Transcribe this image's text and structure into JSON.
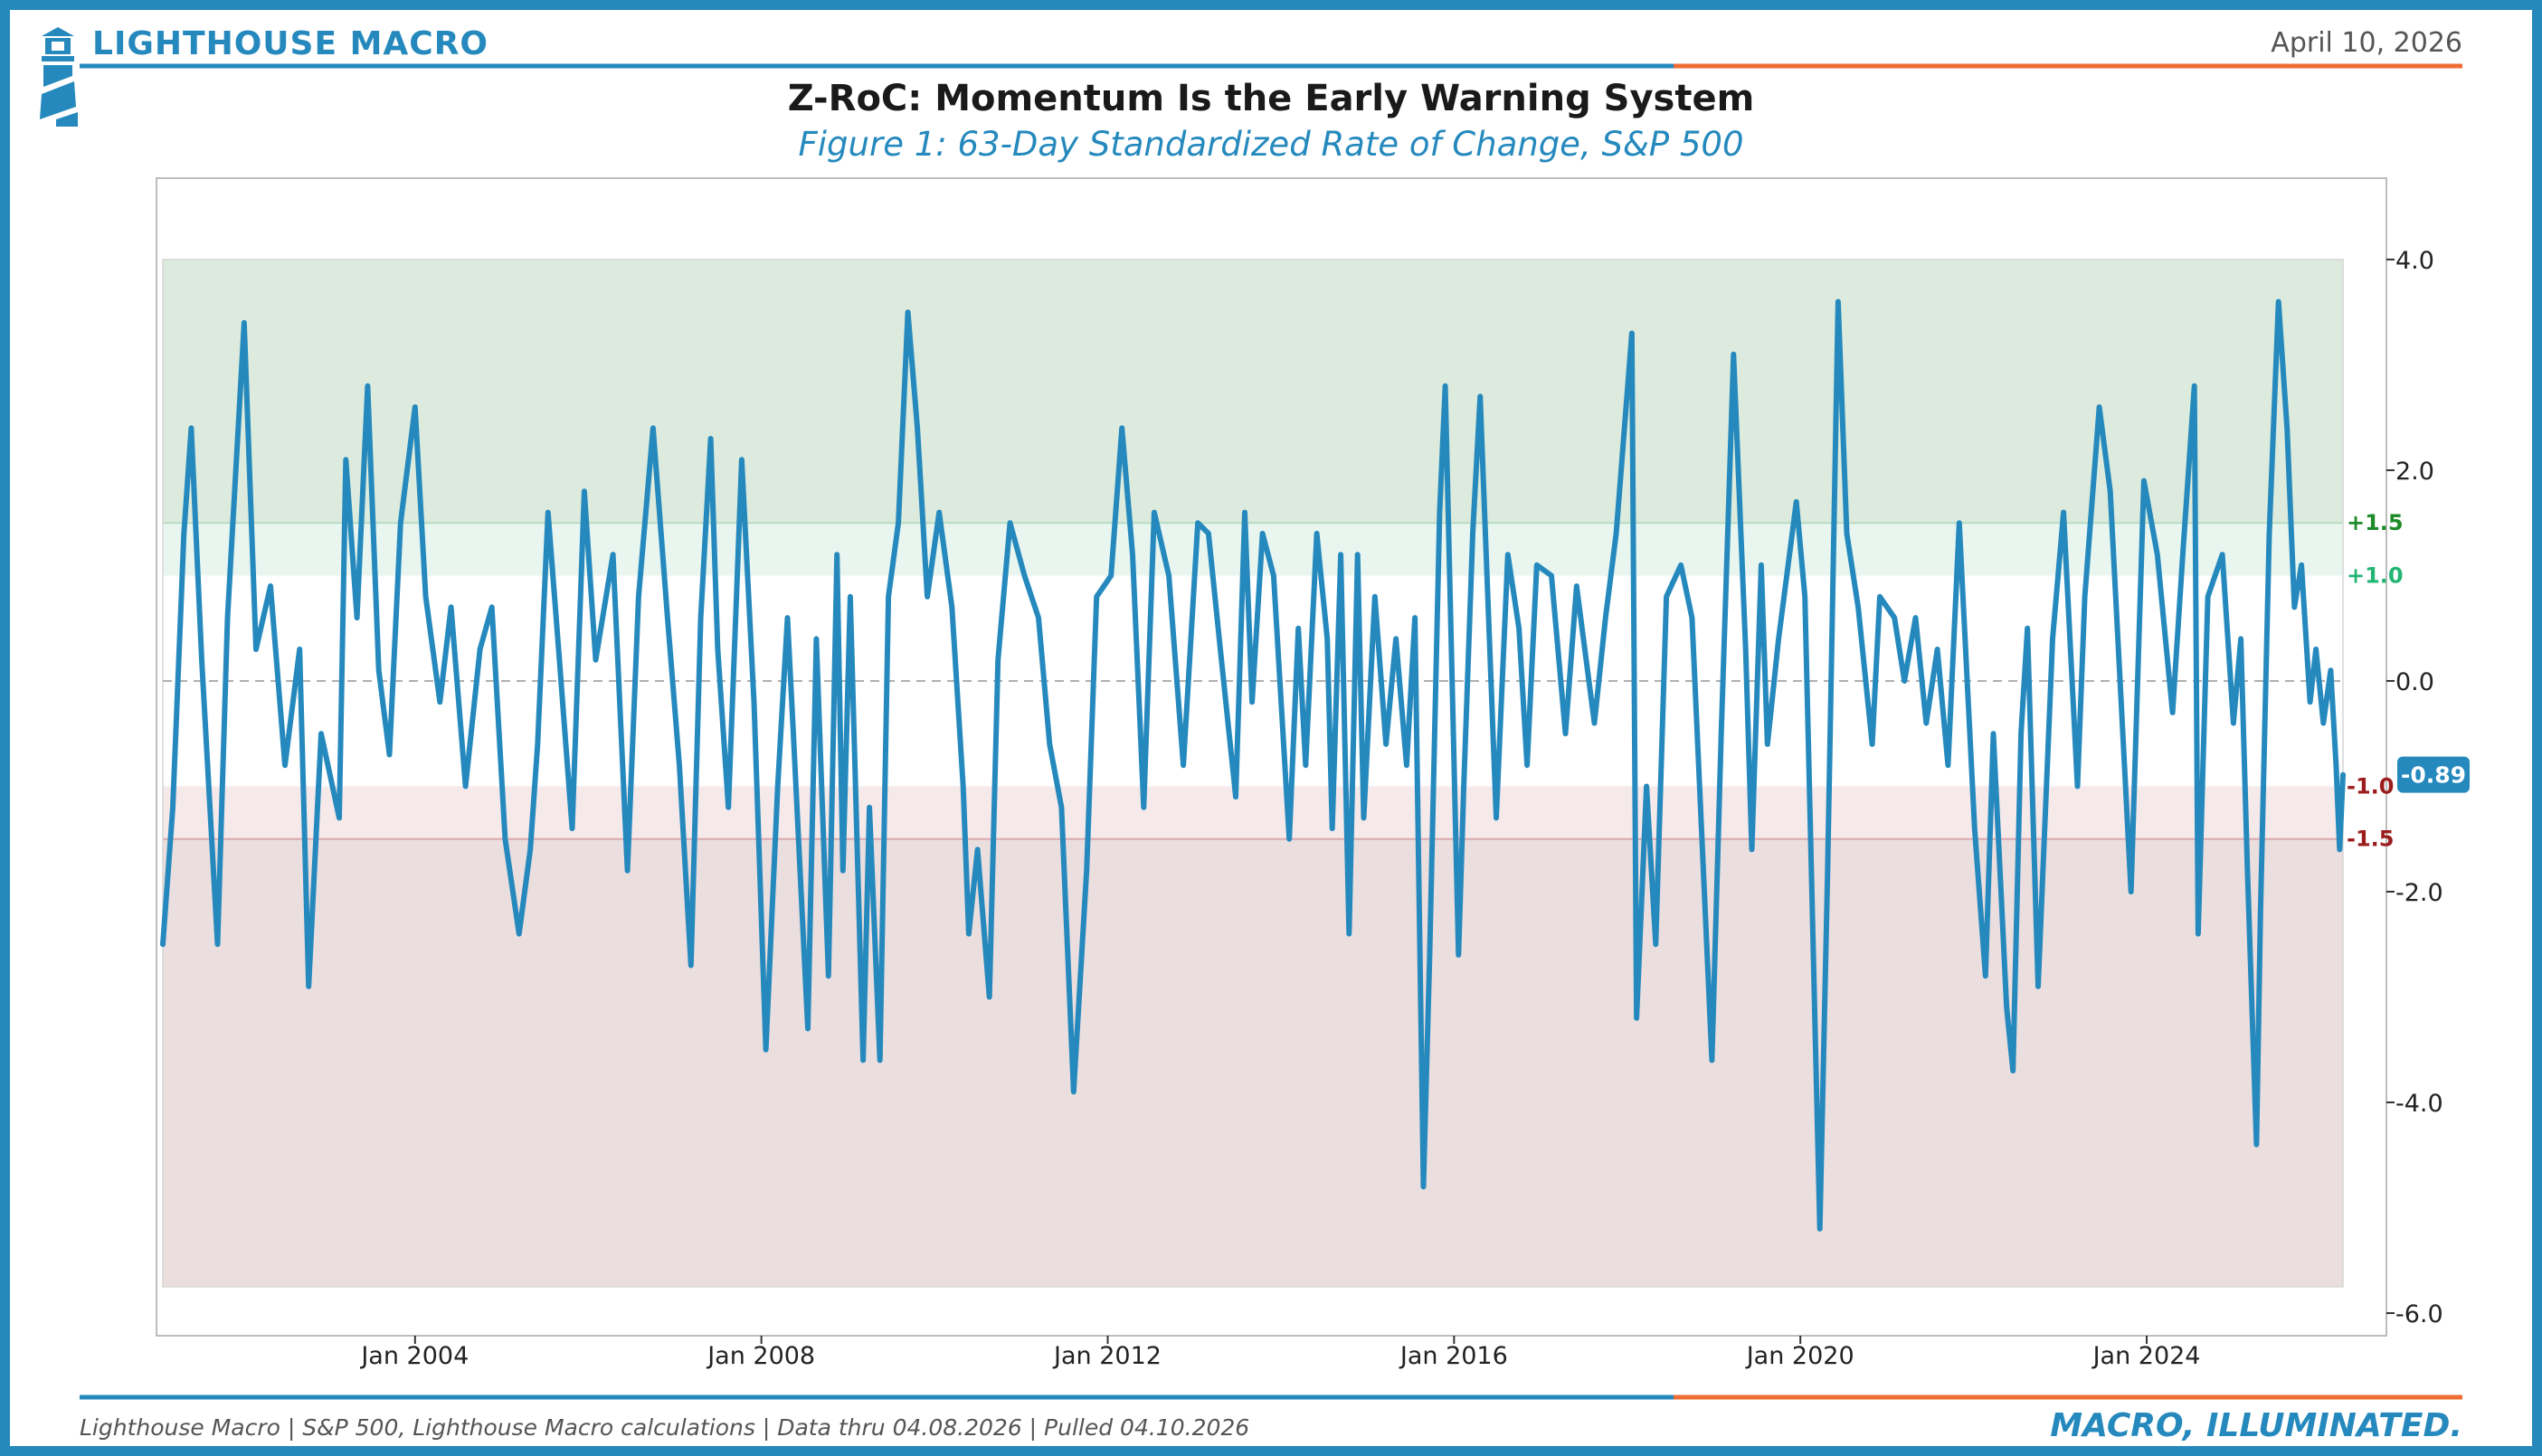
{
  "header": {
    "brand": "LIGHTHOUSE MACRO",
    "date": "April 10, 2026",
    "title": "Z-RoC: Momentum Is the Early Warning System",
    "subtitle": "Figure 1: 63-Day Standardized Rate of Change, S&P 500"
  },
  "footer": {
    "source": "Lighthouse Macro | S&P 500, Lighthouse Macro calculations | Data thru 04.08.2026 | Pulled 04.10.2026",
    "tagline": "MACRO, ILLUMINATED."
  },
  "colors": {
    "accent": "#2589bd",
    "accent_secondary": "#ef6c33",
    "series": "#2589bd",
    "upper_zone": "#dcebdd",
    "upper_band": "#e9f6f0",
    "lower_band": "#f5e9ea",
    "lower_zone": "#ebdede",
    "upper_label": "#1e8a2a",
    "upper_band_label": "#22b573",
    "lower_label": "#9b1c1c"
  },
  "chart_data": {
    "type": "line",
    "series": [
      {
        "values": [
          [
            "2001-02-01",
            -2.5
          ],
          [
            "2001-03-15",
            -1.2
          ],
          [
            "2001-05-01",
            1.4
          ],
          [
            "2001-06-01",
            2.4
          ],
          [
            "2001-07-15",
            0.2
          ],
          [
            "2001-09-20",
            -2.5
          ],
          [
            "2001-11-01",
            0.6
          ],
          [
            "2002-01-10",
            3.4
          ],
          [
            "2002-03-01",
            0.3
          ],
          [
            "2002-05-01",
            0.9
          ],
          [
            "2002-07-01",
            -0.8
          ],
          [
            "2002-09-01",
            0.3
          ],
          [
            "2002-10-09",
            -2.9
          ],
          [
            "2002-12-01",
            -0.5
          ],
          [
            "2003-02-15",
            -1.3
          ],
          [
            "2003-03-15",
            2.1
          ],
          [
            "2003-05-01",
            0.6
          ],
          [
            "2003-06-15",
            2.8
          ],
          [
            "2003-08-01",
            0.1
          ],
          [
            "2003-09-15",
            -0.7
          ],
          [
            "2003-11-01",
            1.5
          ],
          [
            "2004-01-01",
            2.6
          ],
          [
            "2004-02-15",
            0.8
          ],
          [
            "2004-04-15",
            -0.2
          ],
          [
            "2004-06-01",
            0.7
          ],
          [
            "2004-08-01",
            -1.0
          ],
          [
            "2004-10-01",
            0.3
          ],
          [
            "2004-11-20",
            0.7
          ],
          [
            "2005-01-15",
            -1.5
          ],
          [
            "2005-03-15",
            -2.4
          ],
          [
            "2005-05-01",
            -1.6
          ],
          [
            "2005-06-01",
            -0.6
          ],
          [
            "2005-07-15",
            1.6
          ],
          [
            "2005-09-01",
            0.2
          ],
          [
            "2005-10-25",
            -1.4
          ],
          [
            "2005-12-15",
            1.8
          ],
          [
            "2006-02-01",
            0.2
          ],
          [
            "2006-04-15",
            1.2
          ],
          [
            "2006-06-15",
            -1.8
          ],
          [
            "2006-08-01",
            0.8
          ],
          [
            "2006-10-01",
            2.4
          ],
          [
            "2006-12-01",
            0.6
          ],
          [
            "2007-01-20",
            -0.8
          ],
          [
            "2007-03-10",
            -2.7
          ],
          [
            "2007-04-20",
            0.6
          ],
          [
            "2007-06-01",
            2.3
          ],
          [
            "2007-07-01",
            0.3
          ],
          [
            "2007-08-15",
            -1.2
          ],
          [
            "2007-10-10",
            2.1
          ],
          [
            "2007-12-01",
            -0.2
          ],
          [
            "2008-01-20",
            -3.5
          ],
          [
            "2008-03-10",
            -1.0
          ],
          [
            "2008-04-20",
            0.6
          ],
          [
            "2008-05-15",
            -0.5
          ],
          [
            "2008-07-15",
            -3.3
          ],
          [
            "2008-08-20",
            0.4
          ],
          [
            "2008-10-10",
            -2.8
          ],
          [
            "2008-11-15",
            1.2
          ],
          [
            "2008-12-10",
            -1.8
          ],
          [
            "2009-01-10",
            0.8
          ],
          [
            "2009-03-05",
            -3.6
          ],
          [
            "2009-04-01",
            -1.2
          ],
          [
            "2009-05-15",
            -3.6
          ],
          [
            "2009-06-20",
            0.8
          ],
          [
            "2009-08-01",
            1.5
          ],
          [
            "2009-09-10",
            3.5
          ],
          [
            "2009-10-20",
            2.4
          ],
          [
            "2009-12-01",
            0.8
          ],
          [
            "2010-01-20",
            1.6
          ],
          [
            "2010-03-15",
            0.7
          ],
          [
            "2010-05-01",
            -1.0
          ],
          [
            "2010-05-25",
            -2.4
          ],
          [
            "2010-07-01",
            -1.6
          ],
          [
            "2010-08-20",
            -3.0
          ],
          [
            "2010-09-25",
            0.2
          ],
          [
            "2010-11-15",
            1.5
          ],
          [
            "2011-01-15",
            1.0
          ],
          [
            "2011-03-15",
            0.6
          ],
          [
            "2011-05-01",
            -0.6
          ],
          [
            "2011-06-20",
            -1.2
          ],
          [
            "2011-08-10",
            -3.9
          ],
          [
            "2011-10-04",
            -1.8
          ],
          [
            "2011-11-15",
            0.8
          ],
          [
            "2012-01-15",
            1.0
          ],
          [
            "2012-03-01",
            2.4
          ],
          [
            "2012-04-15",
            1.2
          ],
          [
            "2012-06-01",
            -1.2
          ],
          [
            "2012-07-15",
            1.6
          ],
          [
            "2012-09-15",
            1.0
          ],
          [
            "2012-11-15",
            -0.8
          ],
          [
            "2013-01-15",
            1.5
          ],
          [
            "2013-03-01",
            1.4
          ],
          [
            "2013-04-20",
            0.3
          ],
          [
            "2013-06-24",
            -1.1
          ],
          [
            "2013-08-01",
            1.6
          ],
          [
            "2013-09-01",
            -0.2
          ],
          [
            "2013-10-15",
            1.4
          ],
          [
            "2013-12-01",
            1.0
          ],
          [
            "2014-02-05",
            -1.5
          ],
          [
            "2014-03-15",
            0.5
          ],
          [
            "2014-04-15",
            -0.8
          ],
          [
            "2014-06-01",
            1.4
          ],
          [
            "2014-07-15",
            0.4
          ],
          [
            "2014-08-05",
            -1.4
          ],
          [
            "2014-09-10",
            1.2
          ],
          [
            "2014-10-15",
            -2.4
          ],
          [
            "2014-11-20",
            1.2
          ],
          [
            "2014-12-16",
            -1.3
          ],
          [
            "2015-02-01",
            0.8
          ],
          [
            "2015-03-20",
            -0.6
          ],
          [
            "2015-05-01",
            0.4
          ],
          [
            "2015-06-15",
            -0.8
          ],
          [
            "2015-07-20",
            0.6
          ],
          [
            "2015-08-25",
            -4.8
          ],
          [
            "2015-09-20",
            -2.6
          ],
          [
            "2015-11-01",
            1.6
          ],
          [
            "2015-11-25",
            2.8
          ],
          [
            "2016-01-20",
            -2.6
          ],
          [
            "2016-02-11",
            -1.0
          ],
          [
            "2016-03-20",
            1.4
          ],
          [
            "2016-04-20",
            2.7
          ],
          [
            "2016-06-27",
            -1.3
          ],
          [
            "2016-08-15",
            1.2
          ],
          [
            "2016-10-01",
            0.5
          ],
          [
            "2016-11-04",
            -0.8
          ],
          [
            "2016-12-15",
            1.1
          ],
          [
            "2017-02-15",
            1.0
          ],
          [
            "2017-04-15",
            -0.5
          ],
          [
            "2017-06-01",
            0.9
          ],
          [
            "2017-08-15",
            -0.4
          ],
          [
            "2017-10-01",
            0.6
          ],
          [
            "2017-11-15",
            1.4
          ],
          [
            "2018-01-20",
            3.3
          ],
          [
            "2018-02-09",
            -3.2
          ],
          [
            "2018-03-23",
            -1.0
          ],
          [
            "2018-05-01",
            -2.5
          ],
          [
            "2018-06-15",
            0.8
          ],
          [
            "2018-08-15",
            1.1
          ],
          [
            "2018-10-01",
            0.6
          ],
          [
            "2018-12-24",
            -3.6
          ],
          [
            "2019-02-01",
            -0.5
          ],
          [
            "2019-03-25",
            3.1
          ],
          [
            "2019-05-15",
            0.3
          ],
          [
            "2019-06-10",
            -1.6
          ],
          [
            "2019-07-20",
            1.1
          ],
          [
            "2019-08-15",
            -0.6
          ],
          [
            "2019-10-01",
            0.4
          ],
          [
            "2019-12-15",
            1.7
          ],
          [
            "2020-01-20",
            0.8
          ],
          [
            "2020-03-23",
            -5.2
          ],
          [
            "2020-04-25",
            -1.8
          ],
          [
            "2020-06-08",
            3.6
          ],
          [
            "2020-07-15",
            1.4
          ],
          [
            "2020-09-01",
            0.7
          ],
          [
            "2020-10-30",
            -0.6
          ],
          [
            "2020-12-01",
            0.8
          ],
          [
            "2021-02-01",
            0.6
          ],
          [
            "2021-03-15",
            0.0
          ],
          [
            "2021-05-01",
            0.6
          ],
          [
            "2021-06-15",
            -0.4
          ],
          [
            "2021-08-01",
            0.3
          ],
          [
            "2021-09-15",
            -0.8
          ],
          [
            "2021-11-01",
            1.5
          ],
          [
            "2022-01-05",
            -1.4
          ],
          [
            "2022-02-20",
            -2.8
          ],
          [
            "2022-03-25",
            -0.5
          ],
          [
            "2022-05-20",
            -3.1
          ],
          [
            "2022-06-16",
            -3.7
          ],
          [
            "2022-07-20",
            -0.5
          ],
          [
            "2022-08-16",
            0.5
          ],
          [
            "2022-09-30",
            -2.9
          ],
          [
            "2022-11-30",
            0.4
          ],
          [
            "2023-01-15",
            1.6
          ],
          [
            "2023-03-15",
            -1.0
          ],
          [
            "2023-04-15",
            0.8
          ],
          [
            "2023-06-15",
            2.6
          ],
          [
            "2023-07-31",
            1.8
          ],
          [
            "2023-10-27",
            -2.0
          ],
          [
            "2023-12-20",
            1.9
          ],
          [
            "2024-02-15",
            1.2
          ],
          [
            "2024-04-19",
            -0.3
          ],
          [
            "2024-06-01",
            1.2
          ],
          [
            "2024-07-20",
            2.8
          ],
          [
            "2024-08-05",
            -2.4
          ],
          [
            "2024-09-15",
            0.8
          ],
          [
            "2024-11-15",
            1.2
          ],
          [
            "2025-01-01",
            -0.4
          ],
          [
            "2025-02-01",
            0.4
          ],
          [
            "2025-03-01",
            -1.8
          ],
          [
            "2025-04-08",
            -4.4
          ],
          [
            "2025-04-25",
            -2.2
          ],
          [
            "2025-06-01",
            1.4
          ],
          [
            "2025-07-10",
            3.6
          ],
          [
            "2025-08-15",
            2.4
          ],
          [
            "2025-09-15",
            0.7
          ],
          [
            "2025-10-15",
            1.1
          ],
          [
            "2025-11-20",
            -0.2
          ],
          [
            "2025-12-15",
            0.3
          ],
          [
            "2026-01-15",
            -0.4
          ],
          [
            "2026-02-15",
            0.1
          ],
          [
            "2026-03-10",
            -0.8
          ],
          [
            "2026-03-25",
            -1.6
          ],
          [
            "2026-04-08",
            -0.89
          ]
        ]
      }
    ],
    "xlim": [
      "2001-02-01",
      "2026-04-08"
    ],
    "ylim": [
      -6.0,
      4.3
    ],
    "xticks": [
      {
        "date": "2004-01-01",
        "label": "Jan 2004"
      },
      {
        "date": "2008-01-01",
        "label": "Jan 2008"
      },
      {
        "date": "2012-01-01",
        "label": "Jan 2012"
      },
      {
        "date": "2016-01-01",
        "label": "Jan 2016"
      },
      {
        "date": "2020-01-01",
        "label": "Jan 2020"
      },
      {
        "date": "2024-01-01",
        "label": "Jan 2024"
      }
    ],
    "yticks": [
      {
        "value": 4.0,
        "label": "4.0"
      },
      {
        "value": 2.0,
        "label": "2.0"
      },
      {
        "value": 0.0,
        "label": "0.0"
      },
      {
        "value": -2.0,
        "label": "-2.0"
      },
      {
        "value": -4.0,
        "label": "-4.0"
      },
      {
        "value": -6.0,
        "label": "-6.0"
      }
    ],
    "y_axis_side": "right",
    "grid": false,
    "zones": [
      {
        "from": 1.5,
        "to": 4.0,
        "color": "upper_zone"
      },
      {
        "from": 1.0,
        "to": 1.5,
        "color": "upper_band"
      },
      {
        "from": -1.5,
        "to": -1.0,
        "color": "lower_band"
      },
      {
        "from": -5.75,
        "to": -1.5,
        "color": "lower_zone"
      }
    ],
    "threshold_labels": [
      {
        "value": 1.5,
        "label": "+1.5",
        "color": "upper_label"
      },
      {
        "value": 1.0,
        "label": "+1.0",
        "color": "upper_band_label"
      },
      {
        "value": -1.0,
        "label": "-1.0",
        "color": "lower_label"
      },
      {
        "value": -1.5,
        "label": "-1.5",
        "color": "lower_label"
      }
    ],
    "zero_line": true,
    "last_value": {
      "value": -0.89,
      "label": "-0.89"
    }
  }
}
